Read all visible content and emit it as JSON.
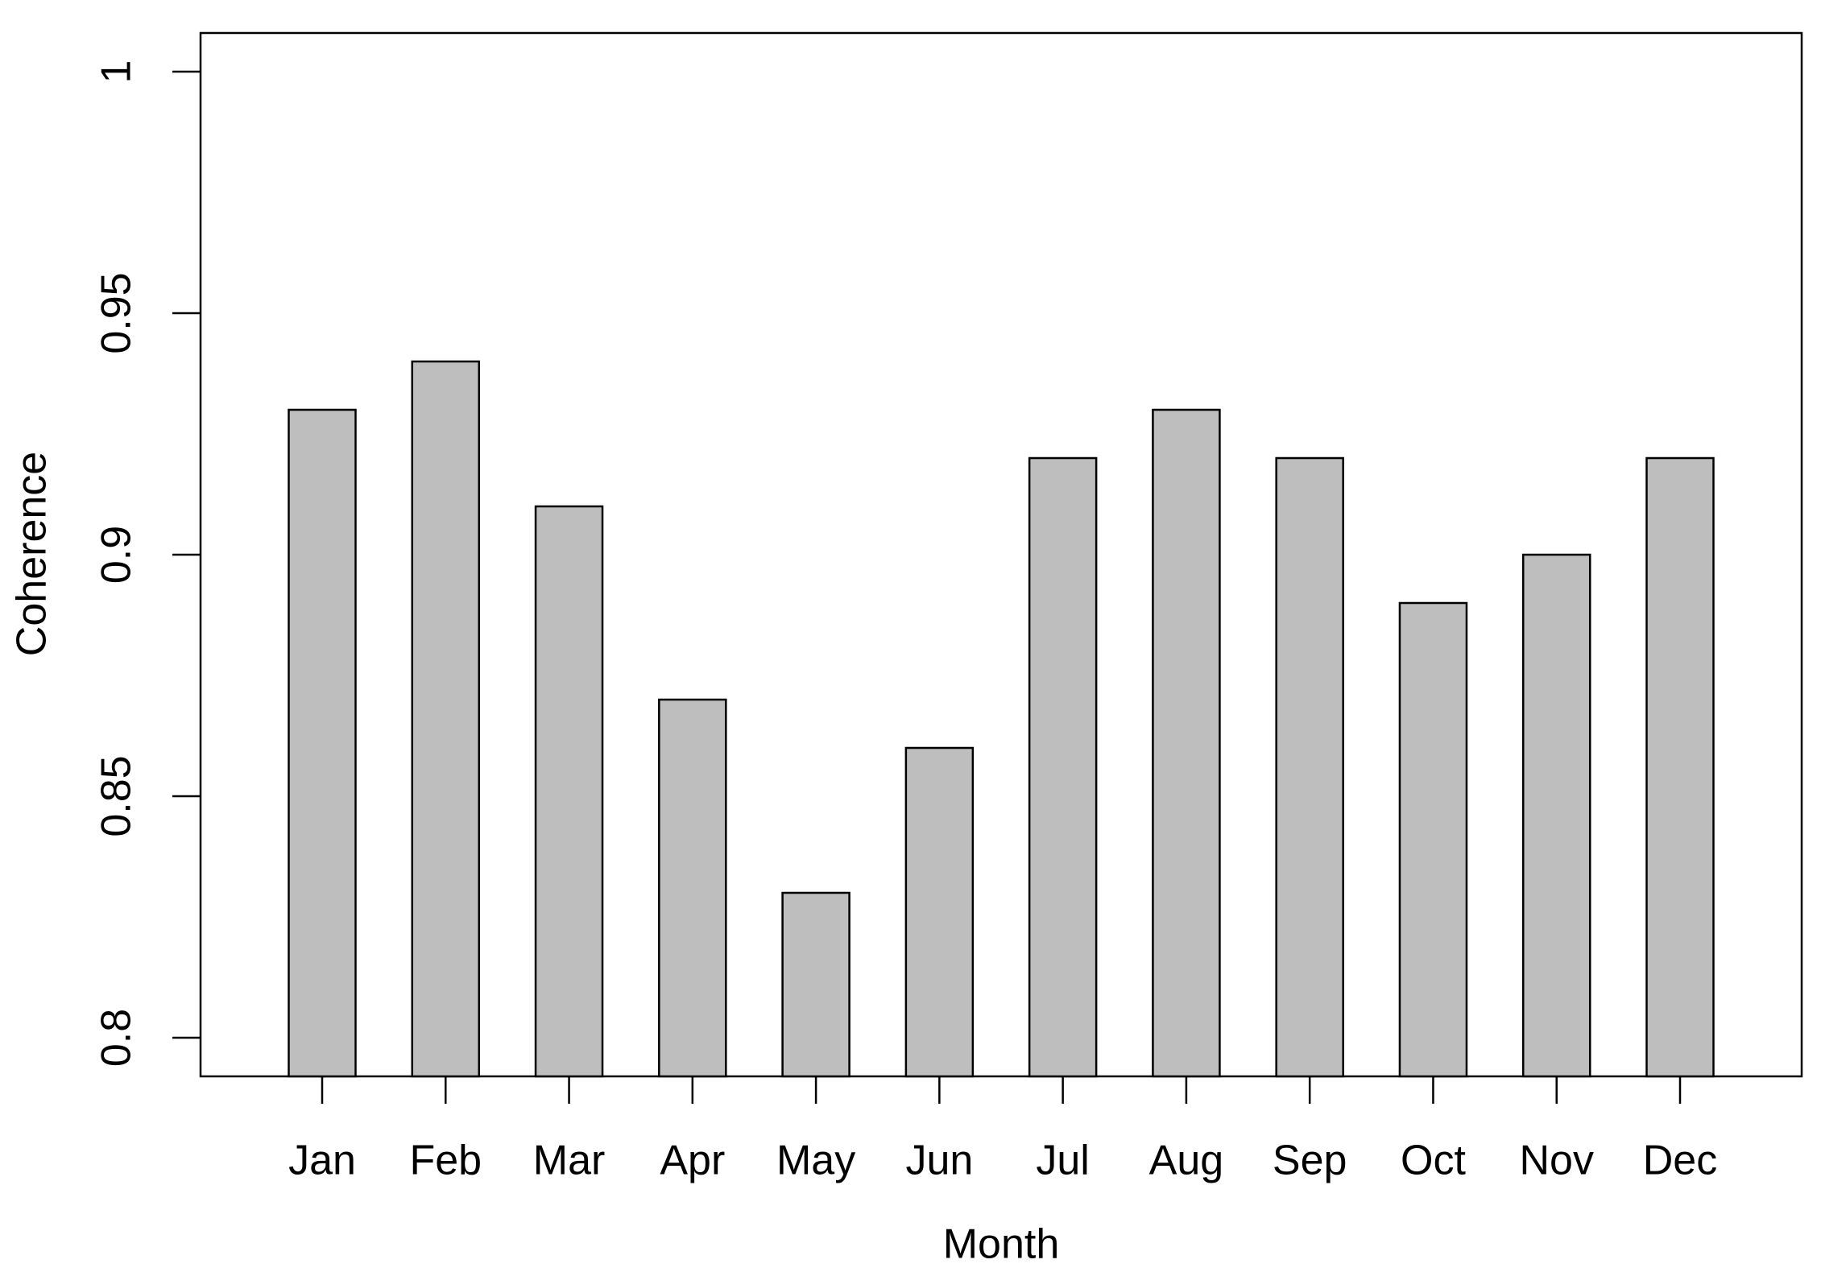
{
  "chart_data": {
    "type": "bar",
    "x_label": "Month",
    "y_label": "Coherence",
    "categories": [
      "Jan",
      "Feb",
      "Mar",
      "Apr",
      "May",
      "Jun",
      "Jul",
      "Aug",
      "Sep",
      "Oct",
      "Nov",
      "Dec"
    ],
    "values": [
      0.93,
      0.94,
      0.91,
      0.87,
      0.83,
      0.86,
      0.92,
      0.93,
      0.92,
      0.89,
      0.9,
      0.92
    ],
    "color": "#bebebe",
    "ylim": [
      0.792,
      1.008
    ],
    "yticks": [
      0.8,
      0.85,
      0.9,
      0.95,
      1
    ]
  }
}
